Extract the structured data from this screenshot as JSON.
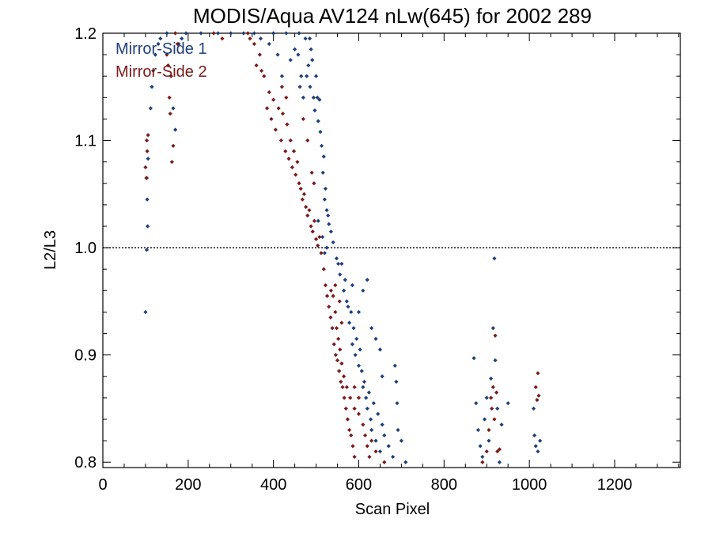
{
  "chart_data": {
    "type": "scatter",
    "title": "MODIS/Aqua AV124 nLw(645) for 2002 289",
    "xlabel": "Scan Pixel",
    "ylabel": "L2/L3",
    "xlim": [
      0,
      1354
    ],
    "ylim": [
      0.795,
      1.2
    ],
    "x_ticks": [
      "0",
      "200",
      "400",
      "600",
      "800",
      "1000",
      "1200"
    ],
    "y_ticks": [
      "0.8",
      "0.9",
      "1.0",
      "1.1",
      "1.2"
    ],
    "x_tick_values": [
      0,
      200,
      400,
      600,
      800,
      1000,
      1200
    ],
    "y_tick_values": [
      0.8,
      0.9,
      1.0,
      1.1,
      1.2
    ],
    "reference_line": 1.0,
    "legend_position": "top-left",
    "series": [
      {
        "name": "Mirror-Side 1",
        "color": "#1f3f7a",
        "points": [
          [
            100,
            0.94
          ],
          [
            103,
            0.998
          ],
          [
            105,
            1.02
          ],
          [
            104,
            1.045
          ],
          [
            103,
            1.065
          ],
          [
            106,
            1.083
          ],
          [
            112,
            1.13
          ],
          [
            115,
            1.15
          ],
          [
            118,
            1.165
          ],
          [
            123,
            1.18
          ],
          [
            130,
            1.19
          ],
          [
            135,
            1.195
          ],
          [
            150,
            1.2
          ],
          [
            165,
            1.13
          ],
          [
            170,
            1.11
          ],
          [
            178,
            1.19
          ],
          [
            185,
            1.195
          ],
          [
            195,
            1.2
          ],
          [
            230,
            1.2
          ],
          [
            270,
            1.2
          ],
          [
            300,
            1.2
          ],
          [
            330,
            1.2
          ],
          [
            355,
            1.2
          ],
          [
            370,
            1.195
          ],
          [
            390,
            1.19
          ],
          [
            400,
            1.2
          ],
          [
            410,
            1.18
          ],
          [
            420,
            1.16
          ],
          [
            430,
            1.2
          ],
          [
            440,
            1.175
          ],
          [
            450,
            1.185
          ],
          [
            458,
            1.18
          ],
          [
            462,
            1.15
          ],
          [
            465,
            1.16
          ],
          [
            470,
            1.14
          ],
          [
            475,
            1.195
          ],
          [
            478,
            1.16
          ],
          [
            482,
            1.17
          ],
          [
            486,
            1.15
          ],
          [
            488,
            1.185
          ],
          [
            491,
            1.175
          ],
          [
            494,
            1.14
          ],
          [
            497,
            1.128
          ],
          [
            500,
            1.16
          ],
          [
            503,
            1.14
          ],
          [
            505,
            1.118
          ],
          [
            508,
            1.138
          ],
          [
            510,
            1.108
          ],
          [
            513,
            1.095
          ],
          [
            516,
            1.07
          ],
          [
            518,
            1.085
          ],
          [
            520,
            1.045
          ],
          [
            522,
            1.055
          ],
          [
            525,
            1.035
          ],
          [
            528,
            1.03
          ],
          [
            530,
            1.022
          ],
          [
            535,
            1.015
          ],
          [
            540,
            1.005
          ],
          [
            548,
            0.99
          ],
          [
            552,
            0.985
          ],
          [
            556,
            0.975
          ],
          [
            560,
            0.985
          ],
          [
            565,
            0.96
          ],
          [
            568,
            0.97
          ],
          [
            572,
            0.95
          ],
          [
            575,
            0.945
          ],
          [
            578,
            0.93
          ],
          [
            582,
            0.94
          ],
          [
            585,
            0.91
          ],
          [
            588,
            0.925
          ],
          [
            592,
            0.9
          ],
          [
            595,
            0.915
          ],
          [
            600,
            0.89
          ],
          [
            603,
            0.905
          ],
          [
            607,
            0.885
          ],
          [
            610,
            0.87
          ],
          [
            613,
            0.875
          ],
          [
            617,
            0.86
          ],
          [
            620,
            0.85
          ],
          [
            624,
            0.865
          ],
          [
            628,
            0.84
          ],
          [
            630,
            0.83
          ],
          [
            635,
            0.855
          ],
          [
            640,
            0.82
          ],
          [
            645,
            0.845
          ],
          [
            650,
            0.81
          ],
          [
            655,
            0.835
          ],
          [
            660,
            0.825
          ],
          [
            670,
            0.815
          ],
          [
            680,
            0.805
          ],
          [
            685,
            0.89
          ],
          [
            688,
            0.875
          ],
          [
            690,
            0.855
          ],
          [
            692,
            0.83
          ],
          [
            700,
            0.82
          ],
          [
            710,
            0.8
          ],
          [
            585,
            0.965
          ],
          [
            600,
            0.94
          ],
          [
            610,
            0.96
          ],
          [
            620,
            0.97
          ],
          [
            655,
            0.88
          ],
          [
            650,
            0.905
          ],
          [
            640,
            0.915
          ],
          [
            630,
            0.925
          ],
          [
            870,
            0.897
          ],
          [
            875,
            0.855
          ],
          [
            880,
            0.83
          ],
          [
            885,
            0.815
          ],
          [
            890,
            0.805
          ],
          [
            895,
            0.84
          ],
          [
            900,
            0.86
          ],
          [
            905,
            0.82
          ],
          [
            910,
            0.878
          ],
          [
            915,
            0.925
          ],
          [
            918,
            0.99
          ],
          [
            920,
            0.895
          ],
          [
            925,
            0.85
          ],
          [
            930,
            0.8
          ],
          [
            935,
            0.835
          ],
          [
            950,
            0.855
          ],
          [
            1010,
            0.85
          ],
          [
            1012,
            0.825
          ],
          [
            1015,
            0.815
          ],
          [
            1020,
            0.81
          ],
          [
            1025,
            0.82
          ],
          [
            520,
            0.995
          ],
          [
            525,
            1.0
          ],
          [
            515,
            1.01
          ],
          [
            505,
            1.025
          ],
          [
            460,
            1.2
          ],
          [
            485,
            1.195
          ]
        ]
      },
      {
        "name": "Mirror-Side 2",
        "color": "#7a1a1a",
        "points": [
          [
            100,
            1.075
          ],
          [
            102,
            1.065
          ],
          [
            103,
            1.1
          ],
          [
            106,
            1.105
          ],
          [
            104,
            1.09
          ],
          [
            150,
            1.18
          ],
          [
            153,
            1.17
          ],
          [
            156,
            1.14
          ],
          [
            158,
            1.125
          ],
          [
            160,
            1.16
          ],
          [
            162,
            1.08
          ],
          [
            165,
            1.095
          ],
          [
            170,
            1.2
          ],
          [
            175,
            1.19
          ],
          [
            260,
            1.2
          ],
          [
            280,
            1.195
          ],
          [
            340,
            1.2
          ],
          [
            345,
            1.195
          ],
          [
            355,
            1.19
          ],
          [
            360,
            1.17
          ],
          [
            368,
            1.18
          ],
          [
            372,
            1.165
          ],
          [
            378,
            1.16
          ],
          [
            385,
            1.13
          ],
          [
            390,
            1.145
          ],
          [
            395,
            1.12
          ],
          [
            400,
            1.138
          ],
          [
            405,
            1.11
          ],
          [
            412,
            1.13
          ],
          [
            418,
            1.1
          ],
          [
            422,
            1.125
          ],
          [
            428,
            1.09
          ],
          [
            432,
            1.115
          ],
          [
            436,
            1.083
          ],
          [
            440,
            1.1
          ],
          [
            444,
            1.075
          ],
          [
            448,
            1.09
          ],
          [
            452,
            1.068
          ],
          [
            456,
            1.08
          ],
          [
            460,
            1.06
          ],
          [
            464,
            1.055
          ],
          [
            468,
            1.045
          ],
          [
            472,
            1.05
          ],
          [
            476,
            1.038
          ],
          [
            480,
            1.03
          ],
          [
            484,
            1.035
          ],
          [
            488,
            1.02
          ],
          [
            492,
            1.015
          ],
          [
            496,
            1.025
          ],
          [
            500,
            1.008
          ],
          [
            504,
            1.002
          ],
          [
            508,
            1.01
          ],
          [
            512,
            0.995
          ],
          [
            518,
            0.98
          ],
          [
            522,
            0.965
          ],
          [
            526,
            0.955
          ],
          [
            530,
            0.945
          ],
          [
            534,
            0.935
          ],
          [
            538,
            0.925
          ],
          [
            542,
            0.91
          ],
          [
            546,
            0.9
          ],
          [
            550,
            0.895
          ],
          [
            554,
            0.885
          ],
          [
            558,
            0.875
          ],
          [
            562,
            0.87
          ],
          [
            566,
            0.86
          ],
          [
            570,
            0.85
          ],
          [
            574,
            0.84
          ],
          [
            578,
            0.83
          ],
          [
            582,
            0.825
          ],
          [
            586,
            0.815
          ],
          [
            590,
            0.805
          ],
          [
            540,
            0.955
          ],
          [
            545,
            0.94
          ],
          [
            548,
            0.925
          ],
          [
            552,
            0.915
          ],
          [
            556,
            0.905
          ],
          [
            560,
            0.892
          ],
          [
            565,
            0.88
          ],
          [
            572,
            0.87
          ],
          [
            580,
            0.86
          ],
          [
            590,
            0.85
          ],
          [
            600,
            0.845
          ],
          [
            610,
            0.835
          ],
          [
            615,
            0.825
          ],
          [
            620,
            0.815
          ],
          [
            625,
            0.805
          ],
          [
            630,
            0.82
          ],
          [
            640,
            0.81
          ],
          [
            660,
            0.8
          ],
          [
            535,
            0.96
          ],
          [
            545,
            0.965
          ],
          [
            555,
            0.95
          ],
          [
            560,
            0.93
          ],
          [
            590,
            0.87
          ],
          [
            600,
            0.86
          ],
          [
            890,
            0.8
          ],
          [
            900,
            0.81
          ],
          [
            905,
            0.83
          ],
          [
            910,
            0.86
          ],
          [
            912,
            0.85
          ],
          [
            915,
            0.87
          ],
          [
            918,
            0.84
          ],
          [
            920,
            0.918
          ],
          [
            923,
            0.865
          ],
          [
            925,
            0.81
          ],
          [
            930,
            0.812
          ],
          [
            1015,
            0.87
          ],
          [
            1018,
            0.858
          ],
          [
            1020,
            0.883
          ],
          [
            1022,
            0.862
          ],
          [
            470,
            1.12
          ],
          [
            480,
            1.1
          ],
          [
            490,
            1.07
          ],
          [
            495,
            1.06
          ],
          [
            420,
            1.15
          ],
          [
            430,
            1.14
          ]
        ]
      }
    ]
  }
}
